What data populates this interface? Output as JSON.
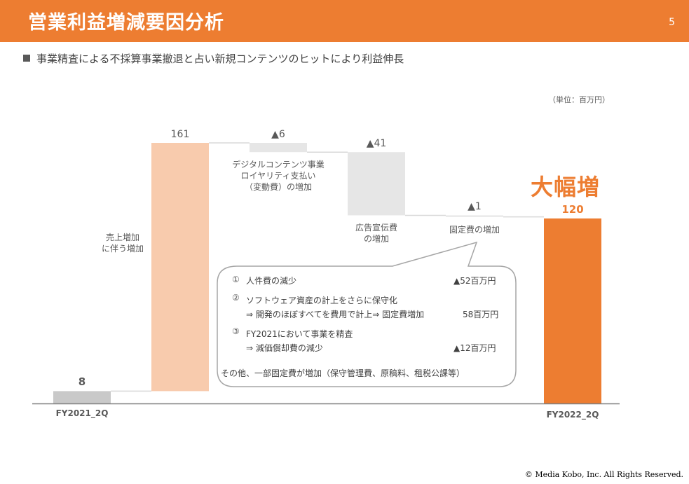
{
  "header": {
    "title": "営業利益増減要因分析",
    "page_number": "5"
  },
  "subtitle": "事業精査による不採算事業撤退と占い新規コンテンツのヒットにより利益伸長",
  "unit_label": "（単位：百万円）",
  "emphasis": "大幅増",
  "colors": {
    "accent": "#ED7D31",
    "increase": "#F8CBAD",
    "decrease": "#E6E6E6",
    "start": "#C9C9C9",
    "end": "#ED7D31"
  },
  "chart_data": {
    "type": "waterfall",
    "categories": [
      "FY2021_2Q",
      "",
      "",
      "",
      "",
      "FY2022_2Q"
    ],
    "steps": [
      {
        "kind": "total",
        "value": 8,
        "label": "8",
        "note": ""
      },
      {
        "kind": "increase",
        "value": 161,
        "label": "161",
        "note": [
          "売上増加",
          "に伴う増加"
        ]
      },
      {
        "kind": "decrease",
        "value": -6,
        "label": "▲6",
        "note": [
          "デジタルコンテンツ事業",
          "ロイヤリティ支払い",
          "（変動費）の増加"
        ]
      },
      {
        "kind": "decrease",
        "value": -41,
        "label": "▲41",
        "note": [
          "広告宣伝費",
          "の増加"
        ]
      },
      {
        "kind": "decrease",
        "value": -1,
        "label": "▲1",
        "note": [
          "固定費の増加"
        ]
      },
      {
        "kind": "total",
        "value": 120,
        "label": "120",
        "note": ""
      }
    ],
    "ylim": [
      0,
      169
    ]
  },
  "callout": {
    "items": [
      {
        "num": "①",
        "lines": [
          "人件費の減少"
        ],
        "amount": "▲52百万円"
      },
      {
        "num": "②",
        "lines": [
          "ソフトウェア資産の計上をさらに保守化",
          "⇒ 開発のほぼすべてを費用で計上⇒ 固定費増加"
        ],
        "amount": "58百万円"
      },
      {
        "num": "③",
        "lines": [
          "FY2021において事業を精査",
          "⇒ 減価償却費の減少"
        ],
        "amount": "▲12百万円"
      }
    ],
    "footer": "その他、一部固定費が増加（保守管理費、原稿料、租税公課等）"
  },
  "footer": "©  Media Kobo, Inc. All Rights Reserved."
}
